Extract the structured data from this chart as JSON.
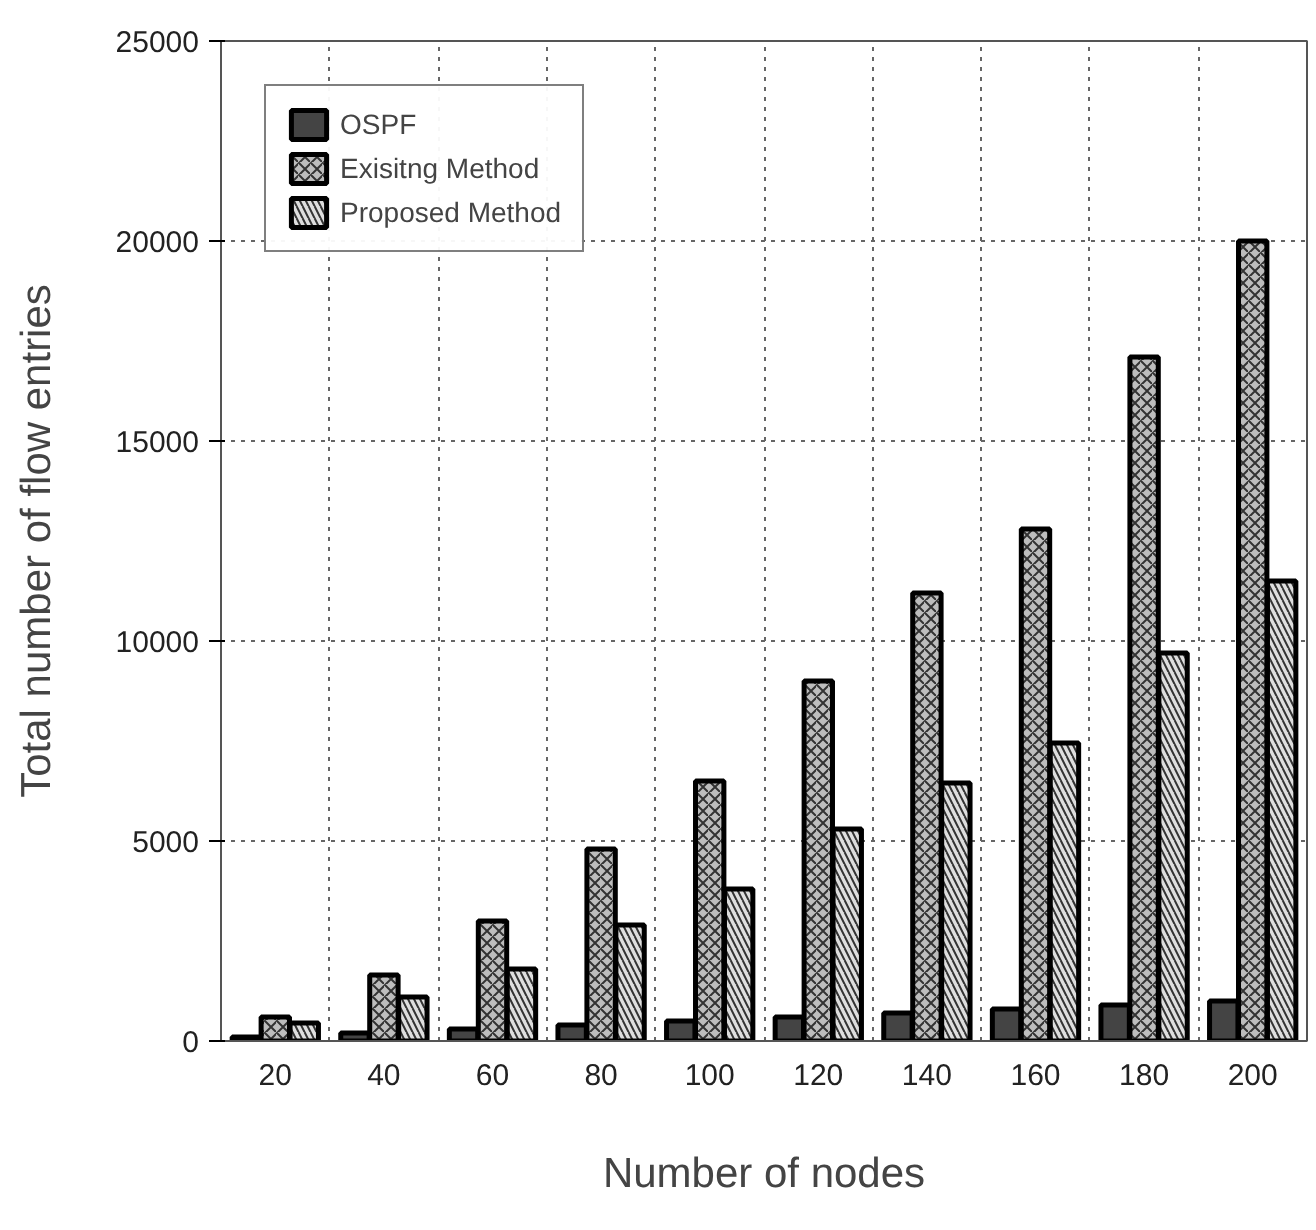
{
  "chart_data": {
    "type": "bar",
    "xlabel": "Number of nodes",
    "ylabel": "Total number of flow entries",
    "categories": [
      "20",
      "40",
      "60",
      "80",
      "100",
      "120",
      "140",
      "160",
      "180",
      "200"
    ],
    "series": [
      {
        "name": "OSPF",
        "color": "#444444",
        "values": [
          100,
          200,
          300,
          400,
          500,
          600,
          700,
          800,
          900,
          1000
        ]
      },
      {
        "name": "Exisitng Method",
        "color": "#bdbdbd",
        "values": [
          600,
          1650,
          3000,
          4800,
          6500,
          9000,
          11200,
          12800,
          17100,
          20000
        ]
      },
      {
        "name": "Proposed Method",
        "color": "#dedede",
        "values": [
          450,
          1100,
          1800,
          2900,
          3800,
          5300,
          6450,
          7450,
          9700,
          11500
        ]
      }
    ],
    "ylim": [
      0,
      25000
    ],
    "yticks": [
      0,
      5000,
      10000,
      15000,
      20000,
      25000
    ],
    "grid": true,
    "legend": "top left"
  }
}
